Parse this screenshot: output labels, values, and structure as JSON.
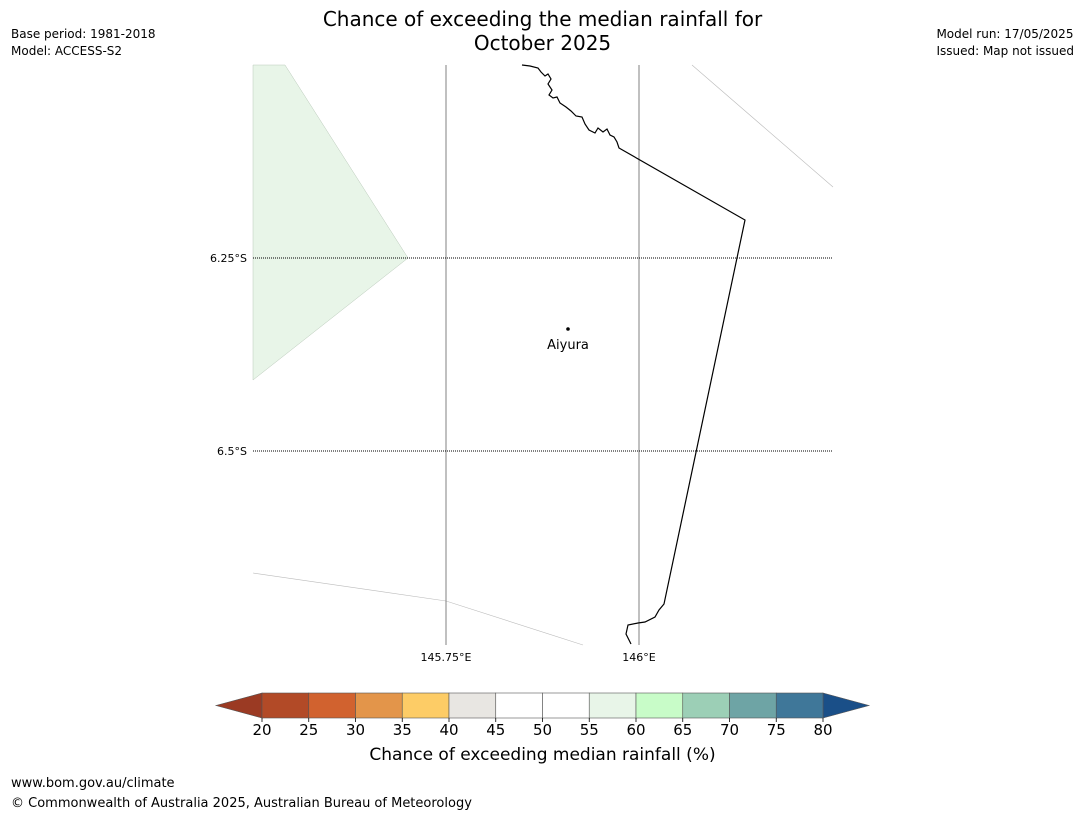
{
  "header": {
    "title_line1": "Chance of exceeding the median rainfall for",
    "title_line2": "October 2025",
    "base_period": "Base period: 1981-2018",
    "model": "Model: ACCESS-S2",
    "model_run": "Model run: 17/05/2025",
    "issued": "Issued: Map not issued"
  },
  "map": {
    "lat_labels": [
      "6.25°S",
      "6.5°S"
    ],
    "lon_labels": [
      "145.75°E",
      "146°E"
    ],
    "place": {
      "name": "Aiyura"
    },
    "shaded_region_category": "55-60"
  },
  "colorbar": {
    "label": "Chance of exceeding median rainfall (%)",
    "ticks": [
      "20",
      "25",
      "30",
      "35",
      "40",
      "45",
      "50",
      "55",
      "60",
      "65",
      "70",
      "75",
      "80"
    ],
    "colors": [
      "#b24a27",
      "#d1622f",
      "#e3954a",
      "#fdcc66",
      "#e8e6e2",
      "#ffffff",
      "#ffffff",
      "#e8f5e8",
      "#c8fcc8",
      "#9ccfb6",
      "#6ea4a5",
      "#3f7799"
    ],
    "under_color": "#9b3a23",
    "over_color": "#1a4f88"
  },
  "footer": {
    "website": "www.bom.gov.au/climate",
    "copyright": "© Commonwealth of Australia 2025, Australian Bureau of Meteorology"
  }
}
